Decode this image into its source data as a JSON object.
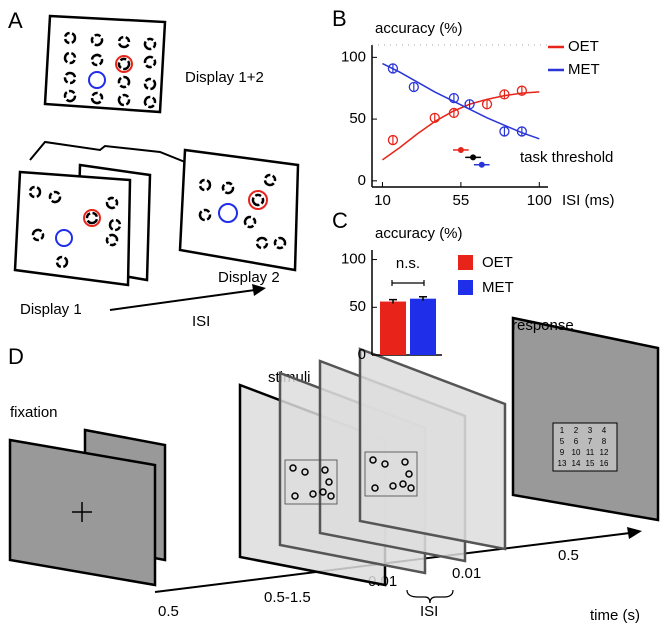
{
  "panel_labels": [
    "A",
    "B",
    "C",
    "D"
  ],
  "panel_a": {
    "display_combined": "Display 1+2",
    "display_1": "Display 1",
    "display_2": "Display 2",
    "isi": "ISI"
  },
  "chart_data": [
    {
      "type": "line",
      "y_label": "accuracy (%)",
      "x_label": "ISI (ms)",
      "xlim": [
        4,
        105
      ],
      "ylim": [
        -5,
        110
      ],
      "xticks": [
        10,
        55,
        100
      ],
      "yticks": [
        0,
        50,
        100
      ],
      "legend": "top-right",
      "series": [
        {
          "name": "OET",
          "color": "#e8241a",
          "x": [
            16,
            40,
            51,
            70,
            80,
            90
          ],
          "values": [
            33,
            51,
            55,
            62,
            70,
            73
          ],
          "errors": [
            4,
            4,
            4,
            4,
            4,
            4
          ],
          "fit_x": [
            10,
            20,
            30,
            40,
            50,
            60,
            70,
            80,
            90,
            100
          ],
          "fit": [
            17,
            27,
            38,
            48,
            56,
            62,
            66,
            69,
            71,
            72
          ]
        },
        {
          "name": "MET",
          "color": "#2a35d8",
          "x": [
            16,
            28,
            51,
            60,
            80,
            90
          ],
          "values": [
            91,
            76,
            67,
            62,
            40,
            40
          ],
          "errors": [
            4,
            4,
            4,
            4,
            4,
            4
          ],
          "fit_x": [
            10,
            20,
            30,
            40,
            50,
            60,
            70,
            80,
            90,
            100
          ],
          "fit": [
            95,
            88,
            80,
            72,
            65,
            58,
            51,
            45,
            39,
            34
          ]
        }
      ],
      "thresholds": {
        "label": "task threshold",
        "points": [
          {
            "color": "#e8241a",
            "x": 55,
            "xerr": 4.5,
            "y": 25
          },
          {
            "color": "#000000",
            "x": 62,
            "xerr": 4.5,
            "y": 19
          },
          {
            "color": "#2a35d8",
            "x": 67,
            "xerr": 4.5,
            "y": 13
          }
        ]
      }
    },
    {
      "type": "bar",
      "y_label": "accuracy (%)",
      "annotation": "n.s.",
      "ylim": [
        0,
        110
      ],
      "yticks": [
        0,
        50,
        100
      ],
      "legend": "right",
      "series": [
        {
          "name": "OET",
          "color": "#e8241a",
          "values": [
            56
          ],
          "errors": [
            2
          ]
        },
        {
          "name": "MET",
          "color": "#1f2ee8",
          "values": [
            59
          ],
          "errors": [
            2
          ]
        }
      ]
    }
  ],
  "panel_d": {
    "fixation": "fixation",
    "stimuli": "stimuli",
    "response": "response",
    "durations": [
      "0.5",
      "0.5-1.5",
      "0.01",
      "0.01",
      "0.5"
    ],
    "isi": "ISI",
    "time_label": "time (s)",
    "response_grid": [
      1,
      2,
      3,
      4,
      5,
      6,
      7,
      8,
      9,
      10,
      11,
      12,
      13,
      14,
      15,
      16
    ]
  }
}
